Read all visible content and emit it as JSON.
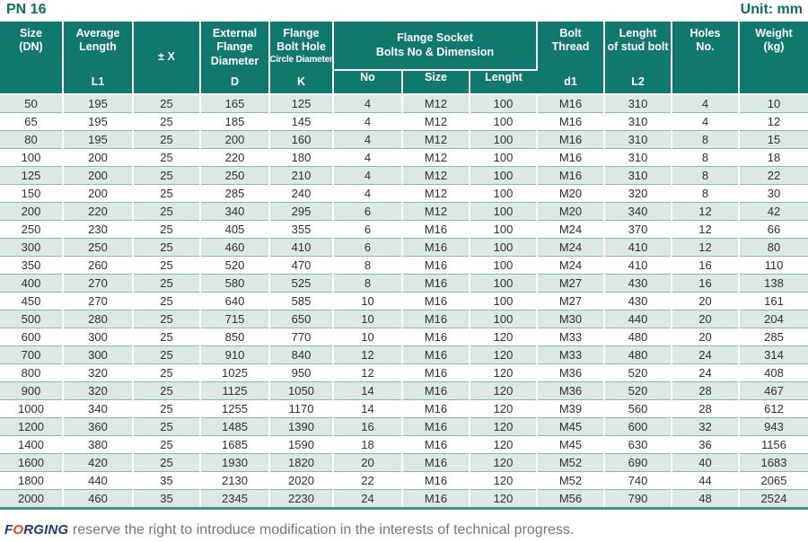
{
  "page": {
    "title": "PN 16",
    "unit_label": "Unit: mm"
  },
  "colors": {
    "header_teal": "#10796b",
    "row_tint": "#dce8e4",
    "title_teal": "#0a6e60",
    "bottom_bar_teal": "#459386",
    "brand_navy": "#22367d",
    "brand_orange": "#e8481d"
  },
  "table": {
    "header": {
      "size": "Size\n(DN)",
      "avg_length_top": "Average\nLength",
      "avg_length_sub": "L1",
      "plus_minus_x": "± X",
      "ext_flange_top": "External\nFlange\nDiameter",
      "ext_flange_sub": "D",
      "bolt_hole_line1": "Flange\nBolt Hole",
      "bolt_hole_line2": "Circle Diameter",
      "bolt_hole_sub": "K",
      "socket_group": "Flange Socket\nBolts No & Dimension",
      "socket_no": "No",
      "socket_size": "Size",
      "socket_length": "Lenght",
      "bolt_thread_top": "Bolt\nThread",
      "bolt_thread_sub": "d1",
      "stud_top": "Lenght\nof stud bolt",
      "stud_sub": "L2",
      "holes": "Holes\nNo.",
      "weight": "Weight\n(kg)"
    },
    "rows": [
      [
        50,
        195,
        25,
        165,
        125,
        4,
        "M12",
        100,
        "M16",
        310,
        4,
        10
      ],
      [
        65,
        195,
        25,
        185,
        145,
        4,
        "M12",
        100,
        "M16",
        310,
        4,
        12
      ],
      [
        80,
        195,
        25,
        200,
        160,
        4,
        "M12",
        100,
        "M16",
        310,
        8,
        15
      ],
      [
        100,
        200,
        25,
        220,
        180,
        4,
        "M12",
        100,
        "M16",
        310,
        8,
        18
      ],
      [
        125,
        200,
        25,
        250,
        210,
        4,
        "M12",
        100,
        "M16",
        310,
        8,
        22
      ],
      [
        150,
        200,
        25,
        285,
        240,
        4,
        "M12",
        100,
        "M20",
        320,
        8,
        30
      ],
      [
        200,
        220,
        25,
        340,
        295,
        6,
        "M12",
        100,
        "M20",
        340,
        12,
        42
      ],
      [
        250,
        230,
        25,
        405,
        355,
        6,
        "M16",
        100,
        "M24",
        370,
        12,
        66
      ],
      [
        300,
        250,
        25,
        460,
        410,
        6,
        "M16",
        100,
        "M24",
        410,
        12,
        80
      ],
      [
        350,
        260,
        25,
        520,
        470,
        8,
        "M16",
        100,
        "M24",
        410,
        16,
        110
      ],
      [
        400,
        270,
        25,
        580,
        525,
        8,
        "M16",
        100,
        "M27",
        430,
        16,
        138
      ],
      [
        450,
        270,
        25,
        640,
        585,
        10,
        "M16",
        100,
        "M27",
        430,
        20,
        161
      ],
      [
        500,
        280,
        25,
        715,
        650,
        10,
        "M16",
        100,
        "M30",
        440,
        20,
        204
      ],
      [
        600,
        300,
        25,
        850,
        770,
        10,
        "M16",
        120,
        "M33",
        480,
        20,
        285
      ],
      [
        700,
        300,
        25,
        910,
        840,
        12,
        "M16",
        120,
        "M33",
        480,
        24,
        314
      ],
      [
        800,
        320,
        25,
        1025,
        950,
        12,
        "M16",
        120,
        "M36",
        520,
        24,
        408
      ],
      [
        900,
        320,
        25,
        1125,
        1050,
        14,
        "M16",
        120,
        "M36",
        520,
        28,
        467
      ],
      [
        1000,
        340,
        25,
        1255,
        1170,
        14,
        "M16",
        120,
        "M39",
        560,
        28,
        612
      ],
      [
        1200,
        360,
        25,
        1485,
        1390,
        16,
        "M16",
        120,
        "M45",
        600,
        32,
        943
      ],
      [
        1400,
        380,
        25,
        1685,
        1590,
        18,
        "M16",
        120,
        "M45",
        630,
        36,
        1156
      ],
      [
        1600,
        420,
        25,
        1930,
        1820,
        20,
        "M16",
        120,
        "M52",
        690,
        40,
        1683
      ],
      [
        1800,
        440,
        35,
        2130,
        2020,
        22,
        "M16",
        120,
        "M52",
        740,
        44,
        2065
      ],
      [
        2000,
        460,
        35,
        2345,
        2230,
        24,
        "M16",
        120,
        "M56",
        790,
        48,
        2524
      ]
    ]
  },
  "footer": {
    "brand_f": "F",
    "brand_o": "O",
    "brand_rest": "RGING",
    "text": " reserve the right to introduce modification in the interests of technical progress."
  }
}
